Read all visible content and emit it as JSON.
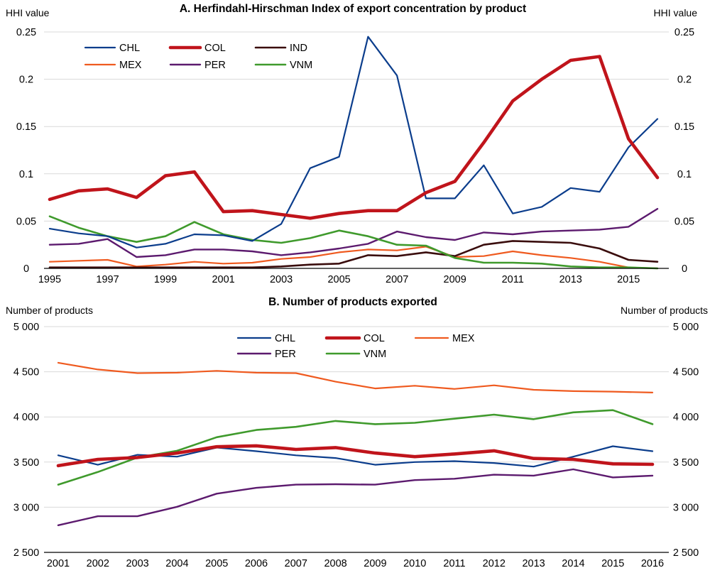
{
  "colors": {
    "CHL": "#0b3d8c",
    "COL": "#c0141b",
    "IND": "#3a0d0d",
    "MEX": "#ef5a1f",
    "PER": "#5c1a6e",
    "VNM": "#3f9a2c"
  },
  "chart_data": [
    {
      "type": "line",
      "title": "A. Herfindahl-Hirschman Index of export concentration by product",
      "ylabel_left": "HHI value",
      "ylabel_right": "HHI value",
      "ylim": [
        0,
        0.25
      ],
      "yticks": [
        0,
        0.05,
        0.1,
        0.15,
        0.2,
        0.25
      ],
      "ytick_labels": [
        "0",
        "0.05",
        "0.1",
        "0.15",
        "0.2",
        "0.25"
      ],
      "x": [
        1995,
        1996,
        1997,
        1998,
        1999,
        2000,
        2001,
        2002,
        2003,
        2004,
        2005,
        2006,
        2007,
        2008,
        2009,
        2010,
        2011,
        2012,
        2013,
        2014,
        2015,
        2016
      ],
      "xtick_labels": [
        "1995",
        "1997",
        "1999",
        "2001",
        "2003",
        "2005",
        "2007",
        "2009",
        "2011",
        "2013",
        "2015"
      ],
      "grid": true,
      "legend_position": "top-left",
      "legend_columns": 3,
      "series": [
        {
          "name": "CHL",
          "values": [
            0.042,
            0.037,
            0.034,
            0.022,
            0.026,
            0.036,
            0.035,
            0.029,
            0.047,
            0.106,
            0.118,
            0.245,
            0.204,
            0.074,
            0.074,
            0.109,
            0.058,
            0.065,
            0.085,
            0.081,
            0.128,
            0.158
          ]
        },
        {
          "name": "COL",
          "values": [
            0.073,
            0.082,
            0.084,
            0.075,
            0.098,
            0.102,
            0.06,
            0.061,
            0.057,
            0.053,
            0.058,
            0.061,
            0.061,
            0.08,
            0.092,
            0.133,
            0.177,
            0.2,
            0.22,
            0.224,
            0.137,
            0.096
          ]
        },
        {
          "name": "IND",
          "values": [
            0.001,
            0.001,
            0.001,
            0.001,
            0.001,
            0.001,
            0.001,
            0.001,
            0.002,
            0.004,
            0.005,
            0.014,
            0.013,
            0.017,
            0.013,
            0.025,
            0.029,
            0.028,
            0.027,
            0.021,
            0.009,
            0.007
          ]
        },
        {
          "name": "MEX",
          "values": [
            0.007,
            0.008,
            0.009,
            0.002,
            0.004,
            0.007,
            0.005,
            0.006,
            0.01,
            0.012,
            0.017,
            0.02,
            0.019,
            0.023,
            0.012,
            0.013,
            0.018,
            0.014,
            0.011,
            0.007,
            0.001,
            0.0
          ]
        },
        {
          "name": "PER",
          "values": [
            0.025,
            0.026,
            0.031,
            0.012,
            0.014,
            0.02,
            0.02,
            0.018,
            0.014,
            0.017,
            0.021,
            0.026,
            0.039,
            0.033,
            0.03,
            0.038,
            0.036,
            0.039,
            0.04,
            0.041,
            0.044,
            0.063
          ]
        },
        {
          "name": "VNM",
          "values": [
            0.055,
            0.043,
            0.034,
            0.028,
            0.034,
            0.049,
            0.036,
            0.03,
            0.027,
            0.032,
            0.04,
            0.034,
            0.025,
            0.024,
            0.011,
            0.006,
            0.006,
            0.005,
            0.002,
            0.001,
            0.001,
            0.0
          ]
        }
      ]
    },
    {
      "type": "line",
      "title": "B. Number of products exported",
      "ylabel_left": "Number of products",
      "ylabel_right": "Number of products",
      "ylim": [
        2500,
        5000
      ],
      "yticks": [
        2500,
        3000,
        3500,
        4000,
        4500,
        5000
      ],
      "ytick_labels": [
        "2 500",
        "3 000",
        "3 500",
        "4 000",
        "4 500",
        "5 000"
      ],
      "x": [
        2001,
        2002,
        2003,
        2004,
        2005,
        2006,
        2007,
        2008,
        2009,
        2010,
        2011,
        2012,
        2013,
        2014,
        2015,
        2016
      ],
      "xtick_labels": [
        "2001",
        "2002",
        "2003",
        "2004",
        "2005",
        "2006",
        "2007",
        "2008",
        "2009",
        "2010",
        "2011",
        "2012",
        "2013",
        "2014",
        "2015",
        "2016"
      ],
      "grid": true,
      "legend_position": "top-center",
      "legend_columns": 3,
      "series": [
        {
          "name": "CHL",
          "values": [
            3575,
            3470,
            3580,
            3560,
            3660,
            3620,
            3575,
            3545,
            3470,
            3500,
            3510,
            3490,
            3450,
            3560,
            3675,
            3620
          ]
        },
        {
          "name": "COL",
          "values": [
            3460,
            3530,
            3550,
            3600,
            3670,
            3680,
            3640,
            3660,
            3600,
            3560,
            3590,
            3625,
            3540,
            3530,
            3480,
            3475
          ]
        },
        {
          "name": "MEX",
          "values": [
            4600,
            4525,
            4485,
            4490,
            4510,
            4490,
            4485,
            4390,
            4315,
            4345,
            4310,
            4350,
            4300,
            4285,
            4280,
            4270
          ]
        },
        {
          "name": "PER",
          "values": [
            2800,
            2900,
            2900,
            3005,
            3150,
            3215,
            3250,
            3255,
            3250,
            3300,
            3315,
            3360,
            3350,
            3420,
            3330,
            3350
          ]
        },
        {
          "name": "VNM",
          "values": [
            3250,
            3390,
            3550,
            3625,
            3775,
            3855,
            3890,
            3955,
            3920,
            3935,
            3980,
            4025,
            3975,
            4050,
            4075,
            3920
          ]
        }
      ]
    }
  ]
}
